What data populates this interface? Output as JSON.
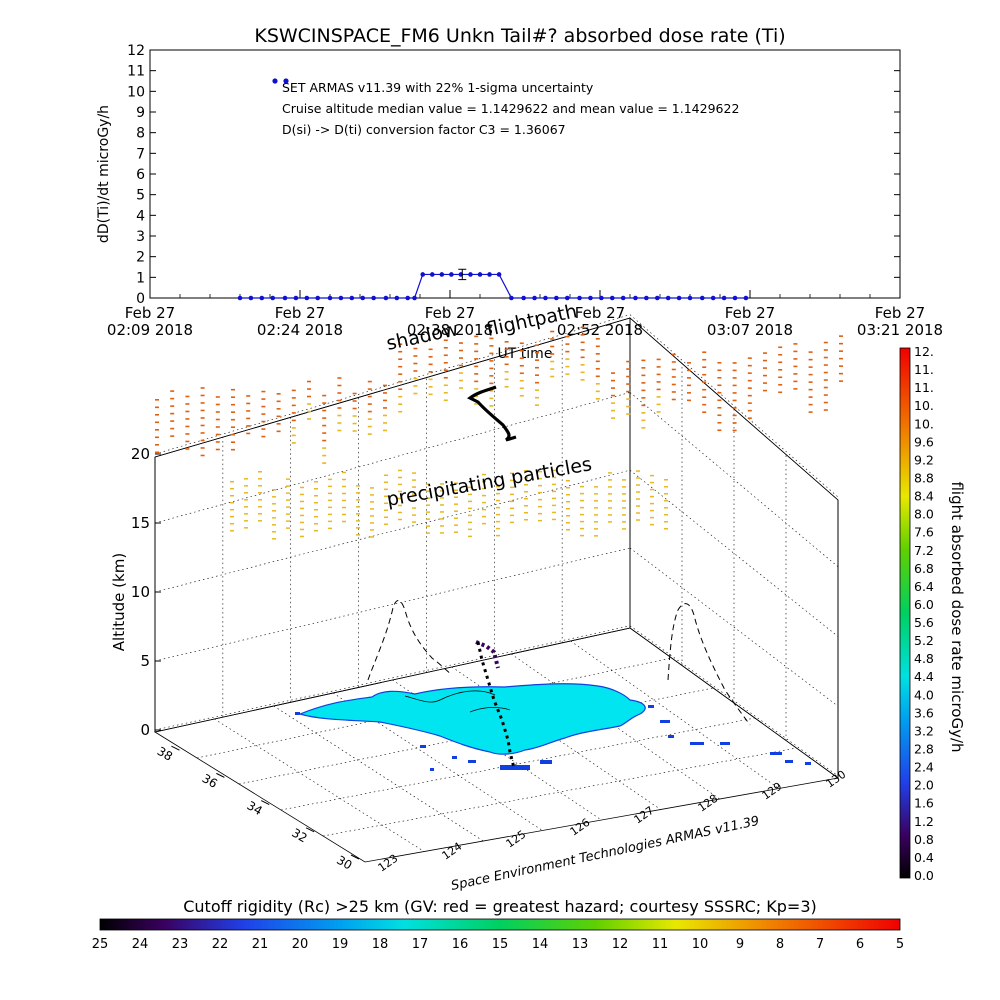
{
  "chart_data": [
    {
      "type": "line",
      "title": "KSWCINSPACE_FM6 Unkn Tail#? absorbed dose rate (Ti)",
      "ylabel": "dD(Ti)/dt microGy/h",
      "xlabel": "UT time",
      "ylim": [
        0,
        12
      ],
      "y_ticks": [
        "0",
        "1",
        "2",
        "3",
        "4",
        "5",
        "6",
        "7",
        "8",
        "9",
        "10",
        "11",
        "12"
      ],
      "x_ticks": [
        {
          "line1": "Feb 27",
          "line2": "02:09 2018"
        },
        {
          "line1": "Feb 27",
          "line2": "02:24 2018"
        },
        {
          "line1": "Feb 27",
          "line2": "02:38 2018"
        },
        {
          "line1": "Feb 27",
          "line2": "02:52 2018"
        },
        {
          "line1": "Feb 27",
          "line2": "03:07 2018"
        },
        {
          "line1": "Feb 27",
          "line2": "03:21 2018"
        }
      ],
      "annotations": [
        "SET ARMAS v11.39 with 22% 1-sigma uncertainty",
        "Cruise altitude median value = 1.1429622 and mean value = 1.1429622",
        "D(si) -> D(ti) conversion factor C3 = 1.36067"
      ],
      "legend_marker_value": 10.5,
      "errorbar": {
        "x": 22.9,
        "y": 1.14,
        "err": 0.25
      },
      "series": [
        {
          "color": "#1010d0",
          "x": [
            6.6,
            7.4,
            8.2,
            9.0,
            9.9,
            10.7,
            11.5,
            12.3,
            13.2,
            14.0,
            14.8,
            15.6,
            16.4,
            17.3,
            18.1,
            18.9,
            19.4,
            20.0,
            20.7,
            21.4,
            22.1,
            22.8,
            23.5,
            24.2,
            24.9,
            25.6,
            26.5,
            27.4,
            28.2,
            29.0,
            29.8,
            30.6,
            31.5,
            32.3,
            33.1,
            33.9,
            34.7,
            35.6,
            36.4,
            37.2,
            38.0,
            38.8,
            39.6,
            40.5,
            41.3,
            42.1,
            42.9,
            43.7
          ],
          "y": [
            0,
            0,
            0,
            0,
            0,
            0,
            0,
            0,
            0,
            0,
            0,
            0,
            0,
            0,
            0,
            0,
            0,
            1.14,
            1.14,
            1.14,
            1.14,
            1.14,
            1.14,
            1.14,
            1.14,
            1.14,
            0,
            0,
            0,
            0,
            0,
            0,
            0,
            0,
            0,
            0,
            0,
            0,
            0,
            0,
            0,
            0,
            0,
            0,
            0,
            0,
            0,
            0
          ]
        }
      ]
    },
    {
      "type": "scatter",
      "zlabel": "Altitude (km)",
      "z_ticks": [
        "0",
        "5",
        "10",
        "15",
        "20"
      ],
      "lat_ticks": [
        "38",
        "36",
        "34",
        "32",
        "30"
      ],
      "lon_ticks": [
        "123",
        "124",
        "125",
        "126",
        "127",
        "128",
        "129",
        "130"
      ],
      "lon_label": "Space Environment Technologies ARMAS v11.39",
      "text_labels": [
        "flightpath",
        "shadow",
        "precipitating particles"
      ]
    }
  ],
  "colorbar_right": {
    "label": "flight absorbed dose rate microGy/h",
    "ticks": [
      "0.0",
      "0.4",
      "0.8",
      "1.2",
      "1.6",
      "2.0",
      "2.4",
      "2.8",
      "3.2",
      "3.6",
      "4.0",
      "4.4",
      "4.8",
      "5.2",
      "5.6",
      "6.0",
      "6.4",
      "6.8",
      "7.2",
      "7.6",
      "8.0",
      "8.4",
      "8.8",
      "9.2",
      "9.6",
      "10.",
      "10.",
      "11.",
      "11.",
      "12."
    ]
  },
  "colorbar_bottom": {
    "label": "Cutoff rigidity (Rc) >25 km (GV: red = greatest hazard; courtesy SSSRC; Kp=3)",
    "ticks": [
      "25",
      "24",
      "23",
      "22",
      "21",
      "20",
      "19",
      "18",
      "17",
      "16",
      "15",
      "14",
      "13",
      "12",
      "11",
      "10",
      "9",
      "8",
      "7",
      "6",
      "5"
    ]
  },
  "colors": {
    "series": "#1010d0",
    "land_cyan": "#00e5f0",
    "land_edge": "#1040e0",
    "particles_orange": "#e06010",
    "particles_yellow": "#e8b820"
  }
}
